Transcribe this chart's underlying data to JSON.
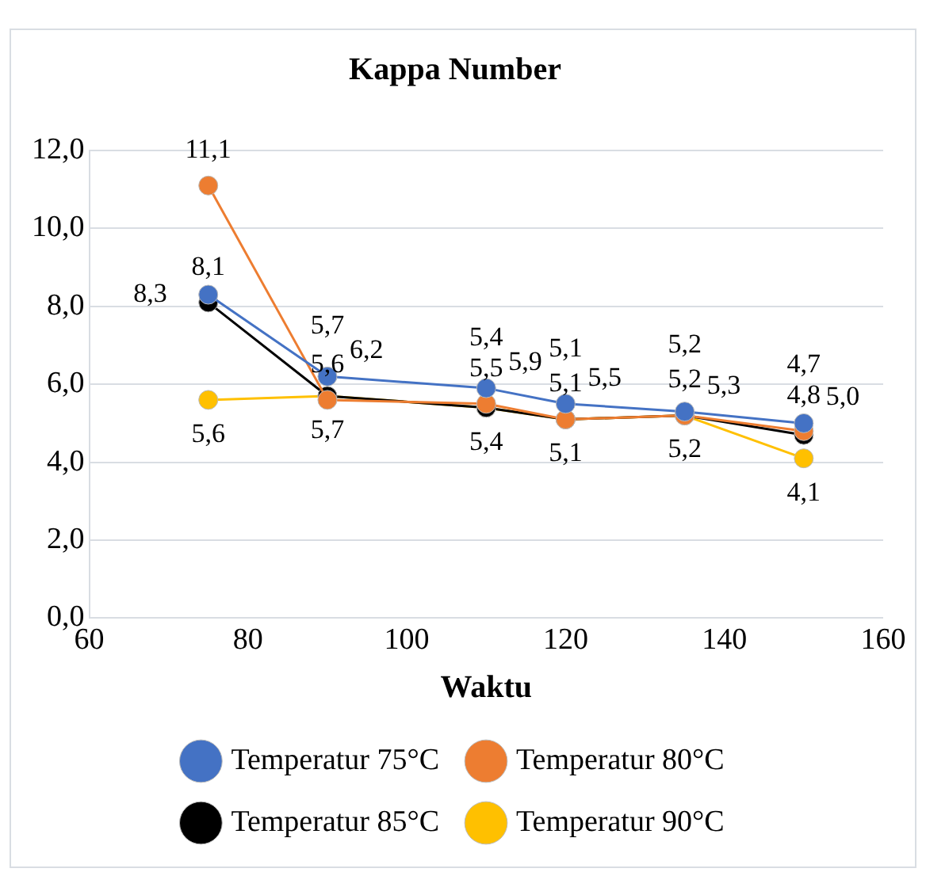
{
  "chart_data": {
    "type": "line",
    "title": "Kappa Number",
    "xlabel": "Waktu",
    "x": [
      75,
      90,
      110,
      120,
      135,
      150
    ],
    "series": [
      {
        "name": "Temperatur 75°C",
        "color": "#4472c4",
        "values": [
          8.3,
          6.2,
          5.9,
          5.5,
          5.3,
          5.0
        ],
        "value_labels": [
          "8,3",
          "6,2",
          "5,9",
          "5,5",
          "5,3",
          "5,0"
        ]
      },
      {
        "name": "Temperatur 80°C",
        "color": "#ed7d31",
        "values": [
          11.1,
          5.6,
          5.5,
          5.1,
          5.2,
          4.8
        ],
        "value_labels": [
          "11,1",
          "5,6",
          "5,5",
          "5,1",
          "5,2",
          "4,8"
        ]
      },
      {
        "name": "Temperatur 85°C",
        "color": "#000000",
        "values": [
          8.1,
          5.7,
          5.4,
          5.1,
          5.2,
          4.7
        ],
        "value_labels": [
          "8,1",
          "5,7",
          "5,4",
          "5,1",
          "5,2",
          "4,7"
        ]
      },
      {
        "name": "Temperatur 90°C",
        "color": "#ffc000",
        "values": [
          5.6,
          5.7,
          5.4,
          5.1,
          5.2,
          4.1
        ],
        "value_labels": [
          "5,6",
          "5,7",
          "5,4",
          "5,1",
          "5,2",
          "4,1"
        ]
      }
    ],
    "xlim": [
      60,
      160
    ],
    "xticks": [
      60,
      80,
      100,
      120,
      140,
      160
    ],
    "ylim": [
      0,
      12
    ],
    "yticks": [
      {
        "value": 0,
        "label": "0,0"
      },
      {
        "value": 2,
        "label": "2,0"
      },
      {
        "value": 4,
        "label": "4,0"
      },
      {
        "value": 6,
        "label": "6,0"
      },
      {
        "value": 8,
        "label": "8,0"
      },
      {
        "value": 10,
        "label": "10,0"
      },
      {
        "value": 12,
        "label": "12,0"
      }
    ],
    "grid": "y",
    "legend": "bottom",
    "marker": "circle",
    "line_style": "solid"
  }
}
